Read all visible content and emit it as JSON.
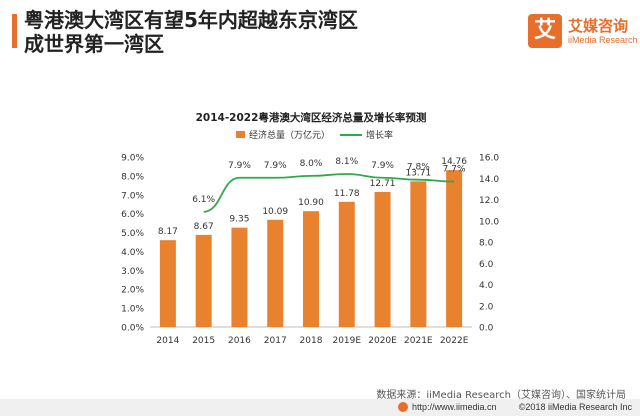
{
  "headline": [
    "粤港澳大湾区有望5年内超越东京湾区",
    "成世界第一湾区"
  ],
  "logo": {
    "glyph": "艾",
    "name": "艾媒咨询",
    "sub": "iiMedia Research"
  },
  "source": "数据来源：iiMedia Research（艾媒咨询）、国家统计局",
  "footer": {
    "url": "http://www.iimedia.cn",
    "copyright": "©2018  iiMedia Research Inc"
  },
  "colors": {
    "accent": "#e86e2c",
    "bar": "#e8822f",
    "line": "#2eaa4a"
  },
  "chart_data": {
    "type": "bar+line",
    "title": "2014-2022粤港澳大湾区经济总量及增长率预测",
    "categories": [
      "2014",
      "2015",
      "2016",
      "2017",
      "2018",
      "2019E",
      "2020E",
      "2021E",
      "2022E"
    ],
    "series": [
      {
        "name": "经济总量（万亿元）",
        "type": "bar",
        "axis": "right",
        "values": [
          8.17,
          8.67,
          9.35,
          10.09,
          10.9,
          11.78,
          12.71,
          13.71,
          14.76
        ],
        "labels": [
          "8.17",
          "8.67",
          "9.35",
          "10.09",
          "10.90",
          "11.78",
          "12.71",
          "13.71",
          "14.76"
        ]
      },
      {
        "name": "增长率",
        "type": "line",
        "axis": "left",
        "values": [
          null,
          6.1,
          7.9,
          7.9,
          8.0,
          8.1,
          7.9,
          7.8,
          7.7
        ],
        "labels": [
          "",
          "6.1%",
          "7.9%",
          "7.9%",
          "8.0%",
          "8.1%",
          "7.9%",
          "7.8%",
          "7.7%"
        ]
      }
    ],
    "left_axis": {
      "min": 0,
      "max": 9,
      "step": 1,
      "ticks": [
        "0.0%",
        "1.0%",
        "2.0%",
        "3.0%",
        "4.0%",
        "5.0%",
        "6.0%",
        "7.0%",
        "8.0%",
        "9.0%"
      ]
    },
    "right_axis": {
      "min": 0,
      "max": 16,
      "step": 2,
      "ticks": [
        "0.0",
        "2.0",
        "4.0",
        "6.0",
        "8.0",
        "10.0",
        "12.0",
        "14.0",
        "16.0"
      ]
    },
    "legend": "top-center"
  }
}
